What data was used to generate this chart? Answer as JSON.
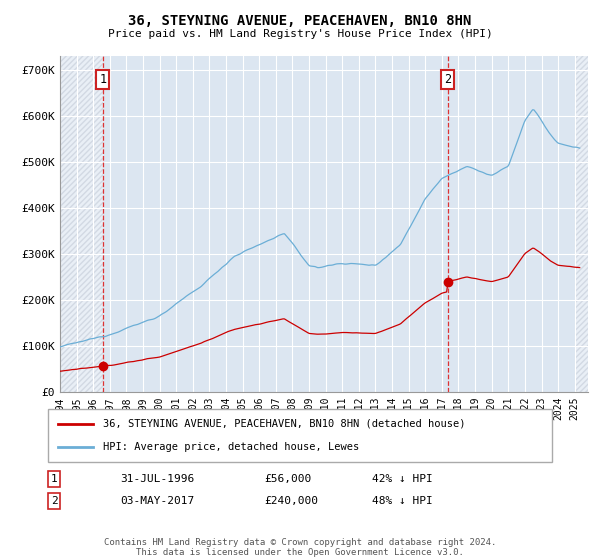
{
  "title": "36, STEYNING AVENUE, PEACEHAVEN, BN10 8HN",
  "subtitle": "Price paid vs. HM Land Registry's House Price Index (HPI)",
  "ylabel_ticks": [
    "£0",
    "£100K",
    "£200K",
    "£300K",
    "£400K",
    "£500K",
    "£600K",
    "£700K"
  ],
  "ytick_vals": [
    0,
    100000,
    200000,
    300000,
    400000,
    500000,
    600000,
    700000
  ],
  "ylim": [
    0,
    730000
  ],
  "xlim_start": 1994.0,
  "xlim_end": 2025.8,
  "x_tick_years": [
    1994,
    1995,
    1996,
    1997,
    1998,
    1999,
    2000,
    2001,
    2002,
    2003,
    2004,
    2005,
    2006,
    2007,
    2008,
    2009,
    2010,
    2011,
    2012,
    2013,
    2014,
    2015,
    2016,
    2017,
    2018,
    2019,
    2020,
    2021,
    2022,
    2023,
    2024,
    2025
  ],
  "sale1_x": 1996.58,
  "sale1_y": 56000,
  "sale2_x": 2017.34,
  "sale2_y": 240000,
  "hpi_color": "#6baed6",
  "sale_color": "#cc0000",
  "background_color": "#dce6f1",
  "legend_label_sale": "36, STEYNING AVENUE, PEACEHAVEN, BN10 8HN (detached house)",
  "legend_label_hpi": "HPI: Average price, detached house, Lewes",
  "row1": [
    "1",
    "31-JUL-1996",
    "£56,000",
    "42% ↓ HPI"
  ],
  "row2": [
    "2",
    "03-MAY-2017",
    "£240,000",
    "48% ↓ HPI"
  ],
  "footer": "Contains HM Land Registry data © Crown copyright and database right 2024.\nThis data is licensed under the Open Government Licence v3.0."
}
